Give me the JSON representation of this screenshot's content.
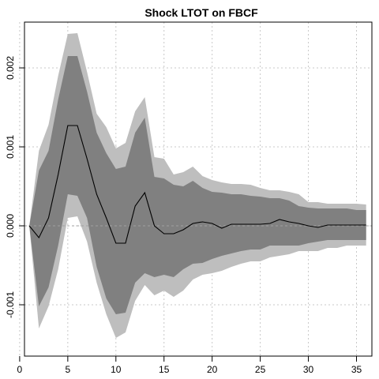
{
  "chart_data": {
    "type": "area",
    "title": "Shock LTOT on FBCF",
    "xlabel": "",
    "ylabel": "",
    "xlim": [
      0.5,
      36.6
    ],
    "ylim": [
      -0.00165,
      0.00258
    ],
    "xticks": [
      0,
      5,
      10,
      15,
      20,
      25,
      30,
      35
    ],
    "yticks": [
      -0.001,
      0.0,
      0.001,
      0.002
    ],
    "ytick_labels": [
      "-0.001",
      "0.000",
      "0.001",
      "0.002"
    ],
    "grid": true,
    "zero_line": true,
    "x": [
      1,
      2,
      3,
      4,
      5,
      6,
      7,
      8,
      9,
      10,
      11,
      12,
      13,
      14,
      15,
      16,
      17,
      18,
      19,
      20,
      21,
      22,
      23,
      24,
      25,
      26,
      27,
      28,
      29,
      30,
      31,
      32,
      33,
      34,
      35,
      36
    ],
    "series": [
      {
        "role": "outer_band",
        "color": "#bebebe",
        "upper": [
          0.0,
          0.00095,
          0.00128,
          0.0019,
          0.00243,
          0.00244,
          0.00195,
          0.00142,
          0.00125,
          0.00098,
          0.00105,
          0.00145,
          0.00163,
          0.00087,
          0.00085,
          0.00065,
          0.00068,
          0.00075,
          0.00063,
          0.00058,
          0.00055,
          0.00053,
          0.00053,
          0.00052,
          0.00048,
          0.00045,
          0.00045,
          0.00043,
          0.0004,
          0.0003,
          0.0003,
          0.00028,
          0.00028,
          0.00028,
          0.00028,
          0.00027
        ],
        "lower": [
          0.0,
          -0.0013,
          -0.00102,
          -0.00055,
          0.0001,
          0.00012,
          -0.0002,
          -0.00072,
          -0.00112,
          -0.00142,
          -0.00135,
          -0.00095,
          -0.00075,
          -0.00088,
          -0.00082,
          -0.0009,
          -0.00082,
          -0.00068,
          -0.00062,
          -0.0006,
          -0.00057,
          -0.00052,
          -0.00048,
          -0.00045,
          -0.00045,
          -0.0004,
          -0.00038,
          -0.00036,
          -0.00032,
          -0.00032,
          -0.00032,
          -0.00028,
          -0.00028,
          -0.00025,
          -0.00025,
          -0.00025
        ]
      },
      {
        "role": "inner_band",
        "color": "#808080",
        "upper": [
          0.0,
          0.0007,
          0.00095,
          0.0016,
          0.00215,
          0.00215,
          0.0017,
          0.00118,
          0.00092,
          0.00072,
          0.00075,
          0.00118,
          0.00137,
          0.00062,
          0.0006,
          0.00052,
          0.0005,
          0.00057,
          0.00048,
          0.00043,
          0.00042,
          0.0004,
          0.0004,
          0.00038,
          0.00037,
          0.00035,
          0.00035,
          0.00032,
          0.00025,
          0.00023,
          0.00022,
          0.00022,
          0.00022,
          0.00022,
          0.0002,
          0.0002
        ],
        "lower": [
          0.0,
          -0.00102,
          -0.00078,
          -0.00025,
          0.0004,
          0.00038,
          0.0001,
          -0.00052,
          -0.00092,
          -0.00112,
          -0.0011,
          -0.00072,
          -0.0006,
          -0.00065,
          -0.00062,
          -0.00065,
          -0.00055,
          -0.00048,
          -0.00047,
          -0.00042,
          -0.00038,
          -0.00035,
          -0.00032,
          -0.0003,
          -0.0003,
          -0.00025,
          -0.00025,
          -0.00025,
          -0.00025,
          -0.00022,
          -0.0002,
          -0.00018,
          -0.00018,
          -0.00018,
          -0.00018,
          -0.00018
        ]
      },
      {
        "role": "response",
        "color": "#000000",
        "values": [
          0.0,
          -0.00015,
          0.0001,
          0.00065,
          0.00127,
          0.00127,
          0.00085,
          0.0004,
          0.0001,
          -0.00022,
          -0.00022,
          0.00025,
          0.00042,
          0.0,
          -0.0001,
          -0.0001,
          -5e-05,
          3e-05,
          5e-05,
          3e-05,
          -3e-05,
          2e-05,
          2e-05,
          2e-05,
          2e-05,
          3e-05,
          8e-05,
          5e-05,
          3e-05,
          0.0,
          -2e-05,
          1e-05,
          1e-05,
          1e-05,
          1e-05,
          1e-05
        ]
      }
    ]
  }
}
